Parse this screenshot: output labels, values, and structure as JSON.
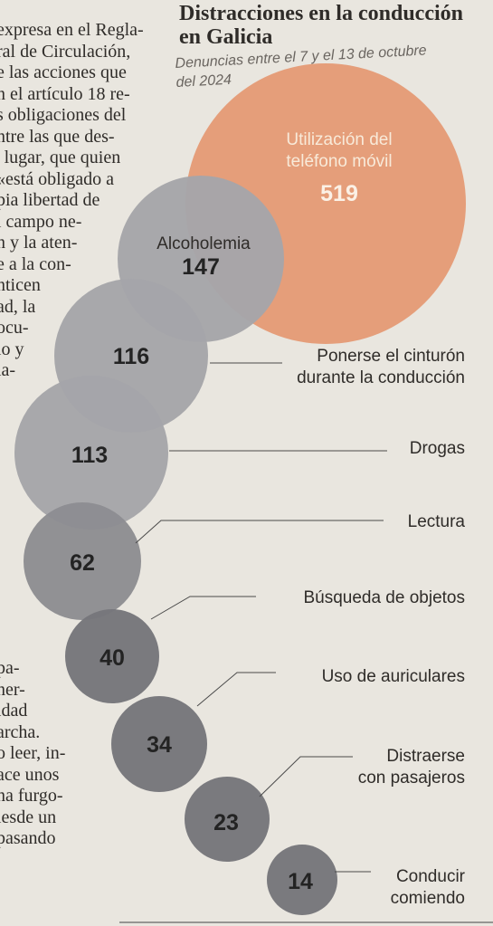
{
  "article": {
    "lines": [
      "expresa en el Regla-",
      "ral de Circulación,",
      "e las acciones que",
      "n el artículo 18 re-",
      "s obligaciones del",
      "ntre las que des-",
      "' lugar, que quien",
      "«está obligado a",
      "pia libertad de",
      "l campo ne-",
      "n y la aten-",
      "e a la con-",
      "nticen",
      "ad, la",
      "ocu-",
      "lo y",
      "ia-",
      "",
      "",
      "",
      "",
      "",
      "",
      "",
      "",
      "",
      "",
      "",
      "",
      "",
      "pa-",
      "ner-",
      "idad",
      "archa.",
      "o leer, in-",
      "ace unos",
      "na furgo-",
      "lesde un",
      "pasando"
    ]
  },
  "chart_data": {
    "type": "bubble",
    "title": "Distracciones en la conducción en Galicia",
    "subtitle": "Denuncias entre el 7 y el 13 de octubre del 2024",
    "colors": {
      "highlight": "#e49b77",
      "light": "#a5a5a9",
      "medium": "#8d8d92",
      "dark": "#76767b"
    },
    "categories": [
      "Utilización del teléfono móvil",
      "Alcoholemia",
      "Ponerse el cinturón durante la conducción",
      "Drogas",
      "Lectura",
      "Búsqueda de objetos",
      "Uso de auriculares",
      "Distraerse con pasajeros",
      "Conducir comiendo"
    ],
    "values": [
      519,
      147,
      116,
      113,
      62,
      40,
      34,
      23,
      14
    ],
    "series": [
      {
        "label": "Utilización del teléfono móvil",
        "value": 519,
        "value_label": "519",
        "lines": [
          "Utilización del",
          "teléfono móvil"
        ],
        "shade": "highlight"
      },
      {
        "label": "Alcoholemia",
        "value": 147,
        "value_label": "147",
        "lines": [
          "Alcoholemia"
        ],
        "shade": "light"
      },
      {
        "label": "Ponerse el cinturón durante la conducción",
        "value": 116,
        "value_label": "116",
        "lines": [
          "Ponerse el cinturón",
          "durante la conducción"
        ],
        "shade": "light"
      },
      {
        "label": "Drogas",
        "value": 113,
        "value_label": "113",
        "lines": [
          "Drogas"
        ],
        "shade": "light"
      },
      {
        "label": "Lectura",
        "value": 62,
        "value_label": "62",
        "lines": [
          "Lectura"
        ],
        "shade": "medium"
      },
      {
        "label": "Búsqueda de objetos",
        "value": 40,
        "value_label": "40",
        "lines": [
          "Búsqueda de objetos"
        ],
        "shade": "dark"
      },
      {
        "label": "Uso de auriculares",
        "value": 34,
        "value_label": "34",
        "lines": [
          "Uso de auriculares"
        ],
        "shade": "dark"
      },
      {
        "label": "Distraerse con pasajeros",
        "value": 23,
        "value_label": "23",
        "lines": [
          "Distraerse",
          "con pasajeros"
        ],
        "shade": "dark"
      },
      {
        "label": "Conducir comiendo",
        "value": 14,
        "value_label": "14",
        "lines": [
          "Conducir",
          "comiendo"
        ],
        "shade": "dark"
      }
    ]
  }
}
